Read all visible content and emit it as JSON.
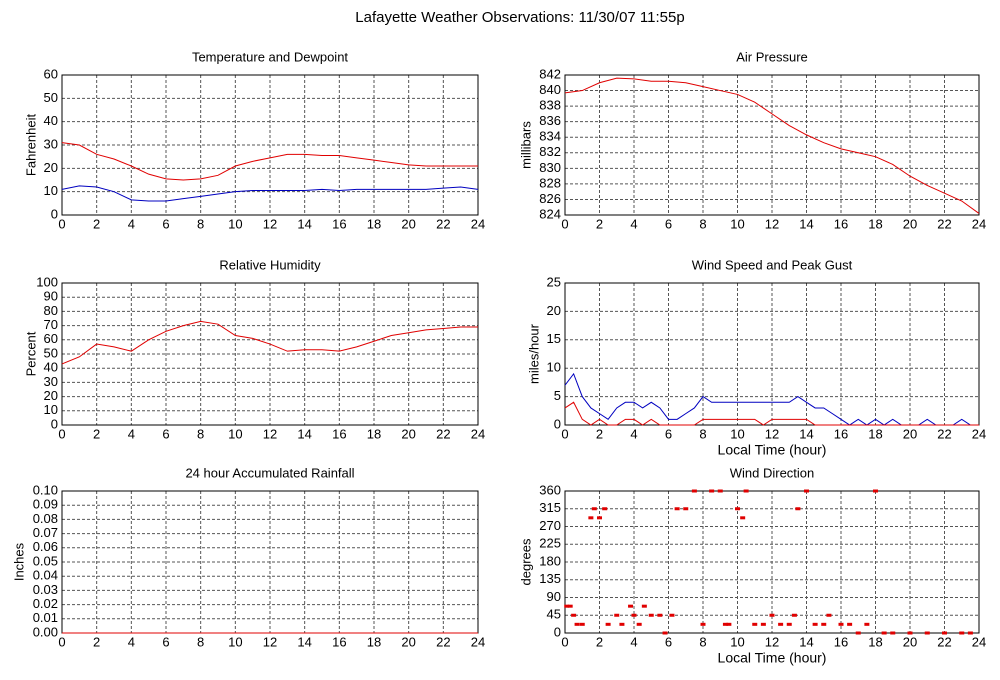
{
  "title": "Lafayette Weather Observations: 11/30/07 11:55p",
  "chart_data": [
    {
      "type": "line",
      "title": "Temperature and Dewpoint",
      "ylabel": "Fahrenheit",
      "x": [
        0,
        1,
        2,
        3,
        4,
        5,
        6,
        7,
        8,
        9,
        10,
        11,
        12,
        13,
        14,
        15,
        16,
        17,
        18,
        19,
        20,
        21,
        22,
        23,
        24
      ],
      "series": [
        {
          "color": "#e00000",
          "values": [
            31,
            30,
            26,
            24,
            21,
            17.5,
            15.5,
            15,
            15.5,
            17,
            21,
            23,
            24.5,
            26,
            26,
            25.5,
            25.5,
            24.5,
            23.5,
            22.5,
            21.5,
            21,
            21,
            21,
            21
          ]
        },
        {
          "color": "#0000c0",
          "values": [
            11,
            12.5,
            12,
            10,
            6.5,
            6,
            6,
            7,
            8,
            9,
            10,
            10.5,
            10.5,
            10.5,
            10.5,
            11,
            10.5,
            11,
            11,
            11,
            11,
            11,
            11.5,
            12,
            11
          ]
        }
      ],
      "xlim": [
        0,
        24
      ],
      "xticks": [
        0,
        2,
        4,
        6,
        8,
        10,
        12,
        14,
        16,
        18,
        20,
        22,
        24
      ],
      "ylim": [
        0,
        60
      ],
      "yticks": [
        0,
        10,
        20,
        30,
        40,
        50,
        60
      ],
      "grid": true
    },
    {
      "type": "line",
      "title": "Air Pressure",
      "ylabel": "millibars",
      "x": [
        0,
        1,
        2,
        3,
        4,
        5,
        6,
        7,
        8,
        9,
        10,
        11,
        12,
        13,
        14,
        15,
        16,
        17,
        18,
        19,
        20,
        21,
        22,
        23,
        24
      ],
      "series": [
        {
          "color": "#e00000",
          "values": [
            839.7,
            840,
            841,
            841.6,
            841.5,
            841.2,
            841.2,
            841,
            840.5,
            840,
            839.5,
            838.5,
            837,
            835.5,
            834.3,
            833.3,
            832.5,
            832,
            831.5,
            830.5,
            829,
            827.8,
            826.8,
            825.8,
            824.2
          ]
        }
      ],
      "xlim": [
        0,
        24
      ],
      "xticks": [
        0,
        2,
        4,
        6,
        8,
        10,
        12,
        14,
        16,
        18,
        20,
        22,
        24
      ],
      "ylim": [
        824,
        842
      ],
      "yticks": [
        824,
        826,
        828,
        830,
        832,
        834,
        836,
        838,
        840,
        842
      ],
      "grid": true
    },
    {
      "type": "line",
      "title": "Relative Humidity",
      "ylabel": "Percent",
      "x": [
        0,
        1,
        2,
        3,
        4,
        5,
        6,
        7,
        8,
        9,
        10,
        11,
        12,
        13,
        14,
        15,
        16,
        17,
        18,
        19,
        20,
        21,
        22,
        23,
        24
      ],
      "series": [
        {
          "color": "#e00000",
          "values": [
            43,
            48,
            57,
            55,
            52,
            60,
            66,
            70,
            73,
            71,
            63,
            61,
            57,
            52,
            53,
            53,
            52,
            55,
            59,
            63,
            65,
            67,
            68,
            69,
            69
          ]
        }
      ],
      "xlim": [
        0,
        24
      ],
      "xticks": [
        0,
        2,
        4,
        6,
        8,
        10,
        12,
        14,
        16,
        18,
        20,
        22,
        24
      ],
      "ylim": [
        0,
        100
      ],
      "yticks": [
        0,
        10,
        20,
        30,
        40,
        50,
        60,
        70,
        80,
        90,
        100
      ],
      "grid": true
    },
    {
      "type": "line",
      "title": "Wind Speed and Peak Gust",
      "ylabel": "miles/hour",
      "xlabel": "Local Time (hour)",
      "x": [
        0,
        0.5,
        1,
        1.5,
        2,
        2.5,
        3,
        3.5,
        4,
        4.5,
        5,
        5.5,
        6,
        6.5,
        7,
        7.5,
        8,
        8.5,
        9,
        9.5,
        10,
        10.5,
        11,
        11.5,
        12,
        12.5,
        13,
        13.5,
        14,
        14.5,
        15,
        15.5,
        16,
        16.5,
        17,
        17.5,
        18,
        18.5,
        19,
        19.5,
        20,
        20.5,
        21,
        21.5,
        22,
        22.5,
        23,
        23.5,
        24
      ],
      "series": [
        {
          "color": "#0000c0",
          "values": [
            7,
            9,
            5,
            3,
            2,
            1,
            3,
            4,
            4,
            3,
            4,
            3,
            1,
            1,
            2,
            3,
            5,
            4,
            4,
            4,
            4,
            4,
            4,
            4,
            4,
            4,
            4,
            5,
            4,
            3,
            3,
            2,
            1,
            0,
            1,
            0,
            1,
            0,
            1,
            0,
            0,
            0,
            1,
            0,
            0,
            0,
            1,
            0,
            0
          ]
        },
        {
          "color": "#e00000",
          "values": [
            3,
            4,
            1,
            0,
            1,
            0,
            0,
            1,
            1,
            0,
            1,
            0,
            0,
            0,
            0,
            0,
            1,
            1,
            1,
            1,
            1,
            1,
            1,
            0,
            1,
            1,
            1,
            1,
            1,
            0,
            0,
            0,
            0,
            0,
            0,
            0,
            0,
            0,
            0,
            0,
            0,
            0,
            0,
            0,
            0,
            0,
            0,
            0,
            0
          ]
        }
      ],
      "xlim": [
        0,
        24
      ],
      "xticks": [
        0,
        2,
        4,
        6,
        8,
        10,
        12,
        14,
        16,
        18,
        20,
        22,
        24
      ],
      "ylim": [
        0,
        25
      ],
      "yticks": [
        0,
        5,
        10,
        15,
        20,
        25
      ],
      "grid": true
    },
    {
      "type": "line",
      "title": "24 hour Accumulated Rainfall",
      "ylabel": "Inches",
      "x": [
        0,
        24
      ],
      "series": [
        {
          "color": "#e00000",
          "values": [
            0,
            0
          ]
        }
      ],
      "xlim": [
        0,
        24
      ],
      "xticks": [
        0,
        2,
        4,
        6,
        8,
        10,
        12,
        14,
        16,
        18,
        20,
        22,
        24
      ],
      "ylim": [
        0,
        0.1
      ],
      "yticks": [
        {
          "value": 0,
          "label": "0.00"
        },
        {
          "value": 0.01,
          "label": "0.01"
        },
        {
          "value": 0.02,
          "label": "0.02"
        },
        {
          "value": 0.03,
          "label": "0.03"
        },
        {
          "value": 0.04,
          "label": "0.04"
        },
        {
          "value": 0.05,
          "label": "0.05"
        },
        {
          "value": 0.06,
          "label": "0.06"
        },
        {
          "value": 0.07,
          "label": "0.07"
        },
        {
          "value": 0.08,
          "label": "0.08"
        },
        {
          "value": 0.09,
          "label": "0.09"
        },
        {
          "value": 0.1,
          "label": "0.10"
        }
      ],
      "grid": true
    },
    {
      "type": "scatter",
      "title": "Wind Direction",
      "ylabel": "degrees",
      "xlabel": "Local Time (hour)",
      "color": "#e00000",
      "x": [
        0.1,
        0.3,
        0.5,
        0.7,
        1,
        1.5,
        1.7,
        2,
        2.3,
        2.5,
        3,
        3.3,
        3.8,
        4,
        4.3,
        4.6,
        5,
        5.5,
        5.8,
        6.2,
        6.5,
        7,
        7.5,
        8,
        8.5,
        9,
        9.3,
        9.5,
        10,
        10.3,
        10.5,
        11,
        11.5,
        12,
        12.5,
        13,
        13.3,
        13.5,
        14,
        14.5,
        15,
        15.3,
        16,
        16.5,
        17,
        17.5,
        18,
        18.5,
        19,
        20,
        21,
        22,
        23,
        23.5
      ],
      "values": [
        68,
        68,
        45,
        22,
        22,
        292,
        315,
        292,
        315,
        22,
        45,
        22,
        68,
        45,
        22,
        68,
        45,
        45,
        0,
        45,
        315,
        315,
        360,
        22,
        360,
        360,
        22,
        22,
        315,
        292,
        360,
        22,
        22,
        45,
        22,
        22,
        45,
        315,
        360,
        22,
        22,
        45,
        22,
        22,
        0,
        22,
        360,
        0,
        0,
        0,
        0,
        0,
        0,
        0
      ],
      "xlim": [
        0,
        24
      ],
      "xticks": [
        0,
        2,
        4,
        6,
        8,
        10,
        12,
        14,
        16,
        18,
        20,
        22,
        24
      ],
      "ylim": [
        0,
        360
      ],
      "yticks": [
        0,
        45,
        90,
        135,
        180,
        225,
        270,
        315,
        360
      ],
      "grid": true
    }
  ]
}
